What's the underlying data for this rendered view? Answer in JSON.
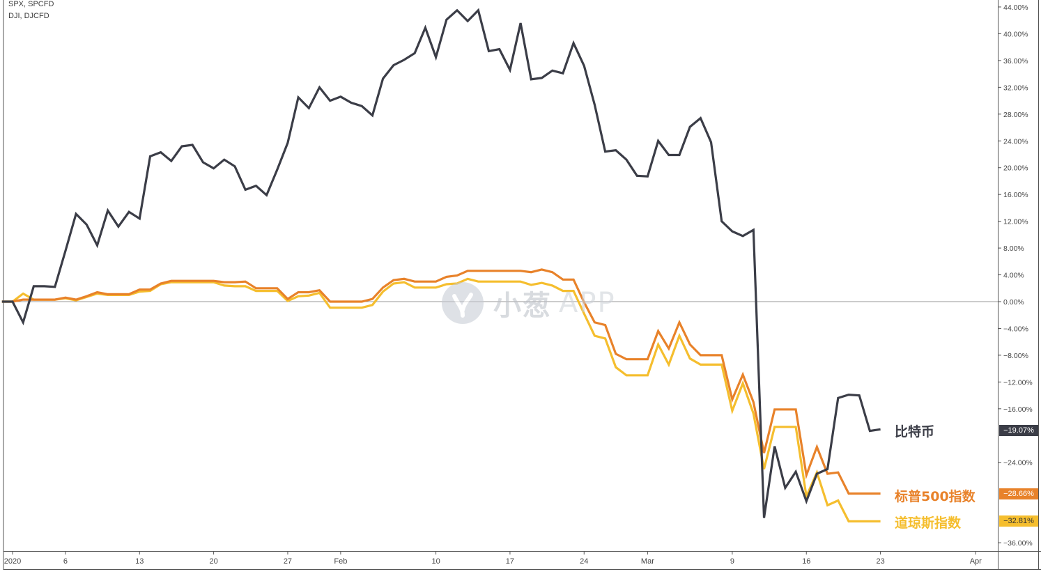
{
  "legend": {
    "line1": "SPX, SPCFD",
    "line2": "DJI, DJCFD"
  },
  "watermark": {
    "brand": "小葱",
    "suffix": "APP"
  },
  "colors": {
    "bitcoin": "#3b3d47",
    "sp500": "#e8822a",
    "dow": "#f5be2e",
    "zero_line": "#9a9a9a",
    "axis": "#555555"
  },
  "chart_data": {
    "type": "line",
    "title": "",
    "xlabel": "",
    "ylabel": "",
    "ylim": [
      -38,
      45
    ],
    "y_axis_position": "right",
    "y_ticks": [
      44,
      40,
      36,
      32,
      28,
      24,
      20,
      16,
      12,
      8,
      4,
      0,
      -4,
      -8,
      -12,
      -16,
      -20,
      -24,
      -28,
      -32,
      -36
    ],
    "y_tick_format": "percent-2dp",
    "grid": false,
    "zero_line": true,
    "x_ticks": [
      {
        "label": "2020",
        "date": "2020-01-01"
      },
      {
        "label": "6",
        "date": "2020-01-06"
      },
      {
        "label": "13",
        "date": "2020-01-13"
      },
      {
        "label": "20",
        "date": "2020-01-20"
      },
      {
        "label": "27",
        "date": "2020-01-27"
      },
      {
        "label": "Feb",
        "date": "2020-02-01"
      },
      {
        "label": "10",
        "date": "2020-02-10"
      },
      {
        "label": "17",
        "date": "2020-02-17"
      },
      {
        "label": "24",
        "date": "2020-02-24"
      },
      {
        "label": "Mar",
        "date": "2020-03-01"
      },
      {
        "label": "9",
        "date": "2020-03-09"
      },
      {
        "label": "16",
        "date": "2020-03-16"
      },
      {
        "label": "23",
        "date": "2020-03-23"
      },
      {
        "label": "Apr",
        "date": "2020-04-01"
      }
    ],
    "x": [
      "2019-12-31",
      "2020-01-01",
      "2020-01-02",
      "2020-01-03",
      "2020-01-04",
      "2020-01-05",
      "2020-01-06",
      "2020-01-07",
      "2020-01-08",
      "2020-01-09",
      "2020-01-10",
      "2020-01-11",
      "2020-01-12",
      "2020-01-13",
      "2020-01-14",
      "2020-01-15",
      "2020-01-16",
      "2020-01-17",
      "2020-01-18",
      "2020-01-19",
      "2020-01-20",
      "2020-01-21",
      "2020-01-22",
      "2020-01-23",
      "2020-01-24",
      "2020-01-25",
      "2020-01-26",
      "2020-01-27",
      "2020-01-28",
      "2020-01-29",
      "2020-01-30",
      "2020-01-31",
      "2020-02-01",
      "2020-02-02",
      "2020-02-03",
      "2020-02-04",
      "2020-02-05",
      "2020-02-06",
      "2020-02-07",
      "2020-02-08",
      "2020-02-09",
      "2020-02-10",
      "2020-02-11",
      "2020-02-12",
      "2020-02-13",
      "2020-02-14",
      "2020-02-15",
      "2020-02-16",
      "2020-02-17",
      "2020-02-18",
      "2020-02-19",
      "2020-02-20",
      "2020-02-21",
      "2020-02-22",
      "2020-02-23",
      "2020-02-24",
      "2020-02-25",
      "2020-02-26",
      "2020-02-27",
      "2020-02-28",
      "2020-02-29",
      "2020-03-01",
      "2020-03-02",
      "2020-03-03",
      "2020-03-04",
      "2020-03-05",
      "2020-03-06",
      "2020-03-07",
      "2020-03-08",
      "2020-03-09",
      "2020-03-10",
      "2020-03-11",
      "2020-03-12",
      "2020-03-13",
      "2020-03-14",
      "2020-03-15",
      "2020-03-16",
      "2020-03-17",
      "2020-03-18",
      "2020-03-19",
      "2020-03-20",
      "2020-03-21",
      "2020-03-22",
      "2020-03-23"
    ],
    "series": [
      {
        "name": "比特币",
        "key": "bitcoin",
        "last_label": "−19.07%",
        "values": [
          0,
          0,
          -3.1,
          2.3,
          2.3,
          2.2,
          7.6,
          13.1,
          11.5,
          8.4,
          13.6,
          11.2,
          13.4,
          12.4,
          21.7,
          22.3,
          21.0,
          23.2,
          23.4,
          20.8,
          19.9,
          21.2,
          20.2,
          16.7,
          17.3,
          15.9,
          19.7,
          23.7,
          30.5,
          28.9,
          32.0,
          30.0,
          30.6,
          29.7,
          29.2,
          27.8,
          33.3,
          35.3,
          36.1,
          37.1,
          40.9,
          36.5,
          42.1,
          43.5,
          41.9,
          43.5,
          37.4,
          37.7,
          34.6,
          41.6,
          33.2,
          33.4,
          34.5,
          34.1,
          38.6,
          35.2,
          29.4,
          22.4,
          22.6,
          21.2,
          18.8,
          18.7,
          24.0,
          21.9,
          21.9,
          26.1,
          27.4,
          23.8,
          12.0,
          10.5,
          9.8,
          10.7,
          -32.3,
          -21.6,
          -27.8,
          -25.4,
          -29.8,
          -25.7,
          -25.0,
          -14.4,
          -13.9,
          -14.0,
          -19.3,
          -19.07
        ]
      },
      {
        "name": "标普500指数",
        "key": "sp500",
        "last_label": "−28.66%",
        "values": [
          0,
          0,
          0.3,
          0.3,
          0.3,
          0.3,
          0.6,
          0.3,
          0.8,
          1.4,
          1.1,
          1.1,
          1.1,
          1.8,
          1.8,
          2.7,
          3.1,
          3.1,
          3.1,
          3.1,
          3.1,
          2.9,
          2.9,
          3.0,
          2.0,
          2.0,
          2.0,
          0.4,
          1.4,
          1.4,
          1.7,
          0,
          0,
          0,
          0,
          0.4,
          2.1,
          3.2,
          3.4,
          3.0,
          3.0,
          3.0,
          3.7,
          3.9,
          4.6,
          4.6,
          4.6,
          4.6,
          4.6,
          4.6,
          4.4,
          4.8,
          4.4,
          3.3,
          3.3,
          -0.1,
          -3.1,
          -3.5,
          -7.8,
          -8.6,
          -8.6,
          -8.6,
          -4.4,
          -7.0,
          -3.1,
          -6.4,
          -8.0,
          -8.0,
          -8.0,
          -14.6,
          -10.9,
          -15.0,
          -22.6,
          -16.1,
          -16.1,
          -16.1,
          -25.9,
          -21.7,
          -25.7,
          -25.5,
          -28.66,
          -28.66,
          -28.66,
          -28.66
        ]
      },
      {
        "name": "道琼斯指数",
        "key": "dow",
        "last_label": "−32.81%",
        "values": [
          0,
          0,
          1.2,
          0.3,
          0.3,
          0.3,
          0.5,
          0.2,
          0.7,
          1.2,
          1.0,
          1.0,
          1.0,
          1.5,
          1.6,
          2.6,
          2.9,
          2.9,
          2.9,
          2.9,
          2.9,
          2.4,
          2.3,
          2.3,
          1.6,
          1.6,
          1.6,
          0.1,
          0.8,
          0.9,
          1.3,
          -0.9,
          -0.9,
          -0.9,
          -0.9,
          -0.5,
          1.5,
          2.7,
          2.9,
          2.1,
          2.1,
          2.1,
          2.6,
          2.7,
          3.4,
          3.0,
          3.0,
          3.0,
          3.0,
          3.0,
          2.5,
          2.8,
          2.4,
          1.6,
          1.6,
          -1.8,
          -5.1,
          -5.5,
          -9.8,
          -11.0,
          -11.0,
          -11.0,
          -6.4,
          -9.4,
          -5.1,
          -8.5,
          -9.4,
          -9.4,
          -9.4,
          -16.3,
          -12.2,
          -16.7,
          -25.0,
          -18.7,
          -18.7,
          -18.7,
          -29.1,
          -25.5,
          -30.4,
          -29.7,
          -32.81,
          -32.81,
          -32.81,
          -32.81
        ]
      }
    ]
  }
}
